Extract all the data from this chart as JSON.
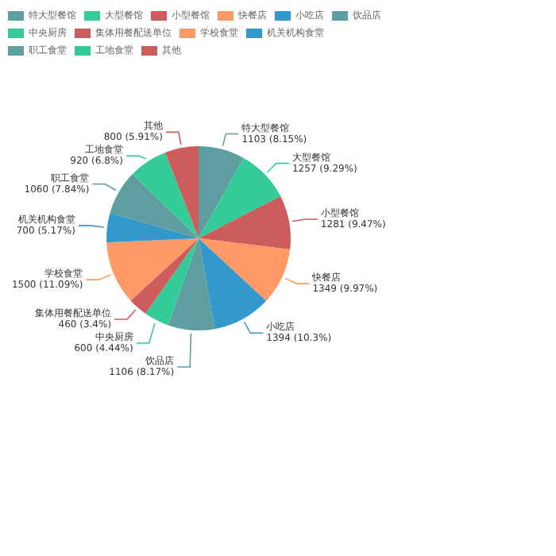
{
  "chart_data": {
    "type": "pie",
    "categories": [
      "特大型餐馆",
      "大型餐馆",
      "小型餐馆",
      "快餐店",
      "小吃店",
      "饮品店",
      "中央厨房",
      "集体用餐配送单位",
      "学校食堂",
      "机关机构食堂",
      "职工食堂",
      "工地食堂",
      "其他"
    ],
    "values": [
      1103,
      1257,
      1281,
      1349,
      1394,
      1106,
      600,
      460,
      1500,
      700,
      1060,
      920,
      800
    ],
    "value_labels": [
      "1103 (8.15%)",
      "1257 (9.29%)",
      "1281 (9.47%)",
      "1349 (9.97%)",
      "1394 (10.3%)",
      "1106 (8.17%)",
      "600 (4.44%)",
      "460 (3.4%)",
      "1500 (11.09%)",
      "700 (5.17%)",
      "1060 (7.84%)",
      "920 (6.8%)",
      "800 (5.91%)"
    ],
    "colors": [
      "#5f9ea0",
      "#33cc99",
      "#cd5c5c",
      "#ff9966",
      "#3399cc",
      "#5f9ea0",
      "#33cc99",
      "#cd5c5c",
      "#ff9966",
      "#3399cc",
      "#5f9ea0",
      "#33cc99",
      "#cd5c5c"
    ],
    "legend": "top left"
  }
}
